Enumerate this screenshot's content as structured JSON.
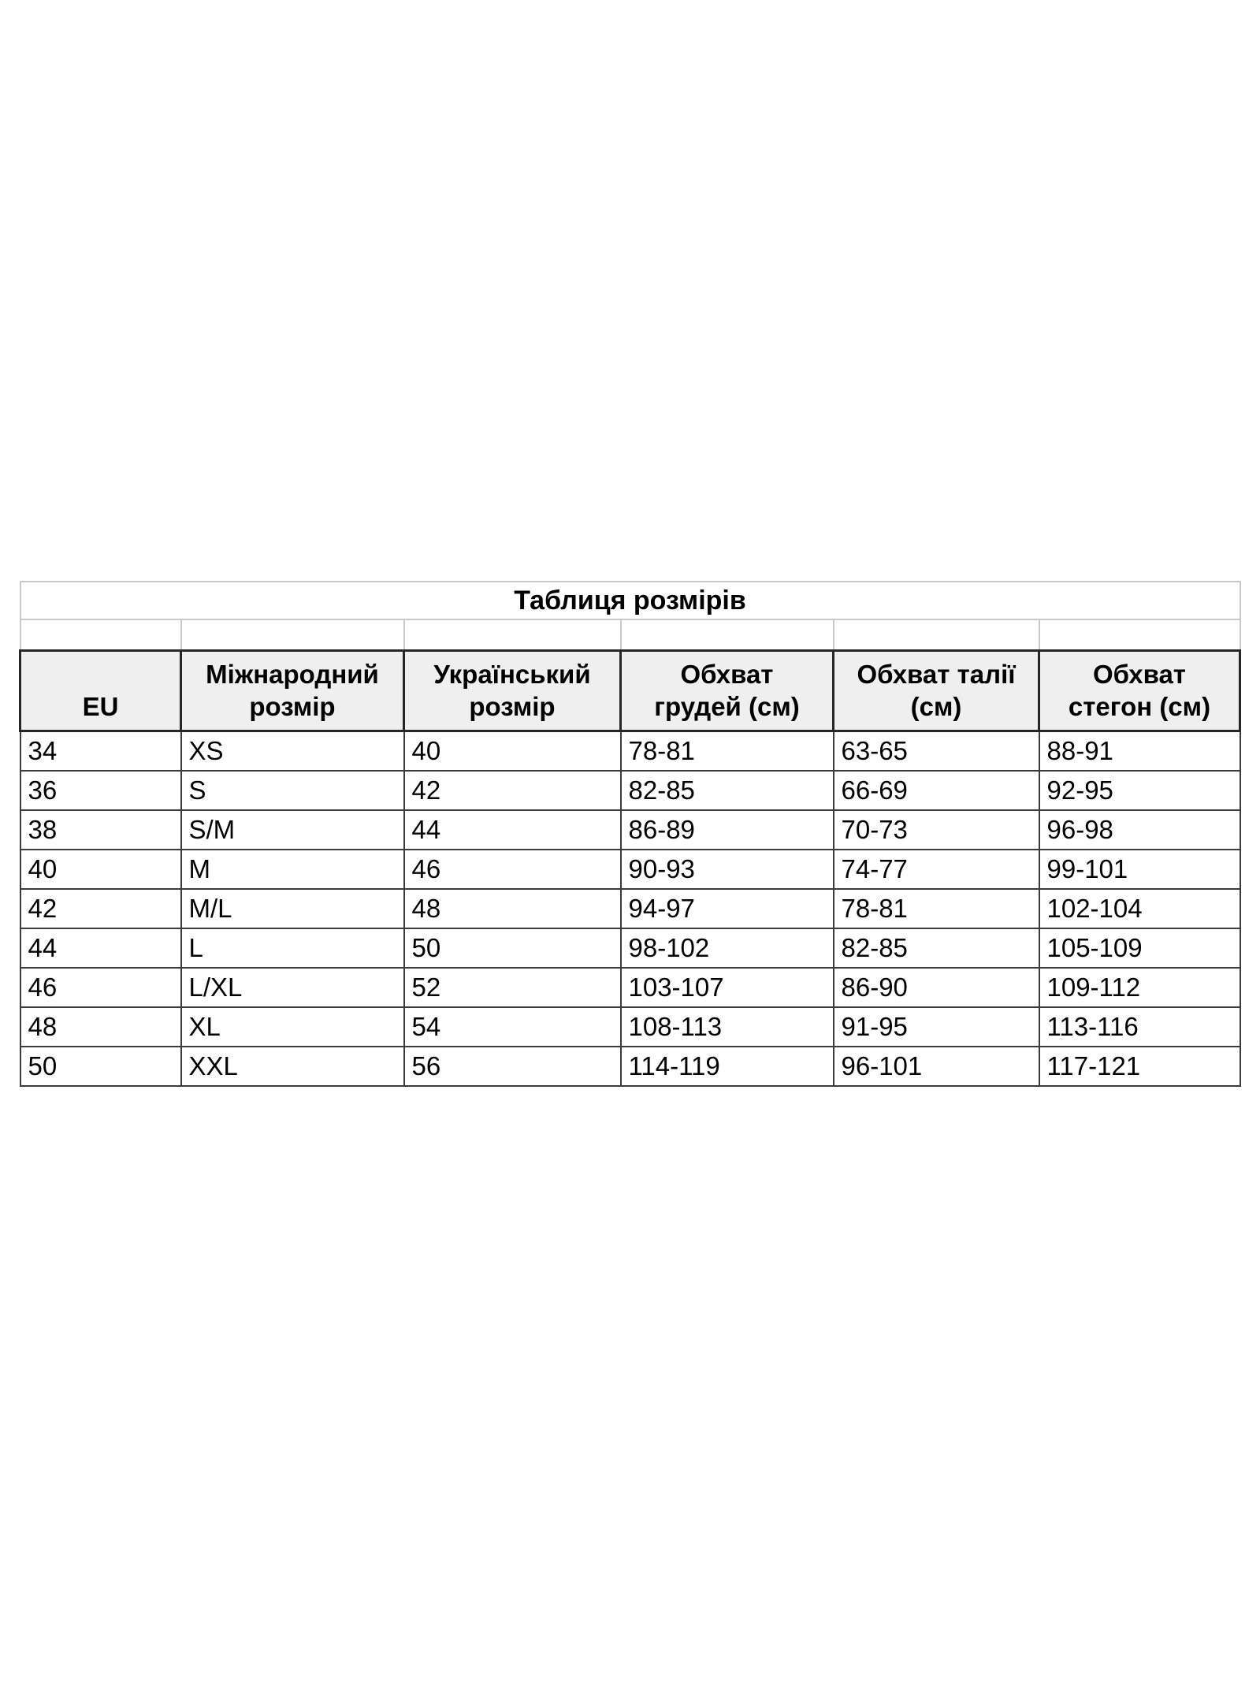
{
  "table": {
    "title": "Таблиця розмірів",
    "columns": [
      {
        "key": "eu",
        "label": "EU",
        "lines": [
          "EU",
          ""
        ]
      },
      {
        "key": "international-size",
        "label": "Міжнародний розмір",
        "lines": [
          "Міжнародний",
          "розмір"
        ]
      },
      {
        "key": "ukrainian-size",
        "label": "Український розмір",
        "lines": [
          "Український",
          "розмір"
        ]
      },
      {
        "key": "chest-cm",
        "label": "Обхват грудей (см)",
        "lines": [
          "Обхват",
          "грудей (см)"
        ]
      },
      {
        "key": "waist-cm",
        "label": "Обхват талії (см)",
        "lines": [
          "Обхват талії",
          "(см)"
        ]
      },
      {
        "key": "hips-cm",
        "label": "Обхват стегон (см)",
        "lines": [
          "Обхват",
          "стегон (см)"
        ]
      }
    ],
    "rows": [
      [
        "34",
        "XS",
        "40",
        "78-81",
        "63-65",
        "88-91"
      ],
      [
        "36",
        "S",
        "42",
        "82-85",
        "66-69",
        "92-95"
      ],
      [
        "38",
        "S/M",
        "44",
        "86-89",
        "70-73",
        "96-98"
      ],
      [
        "40",
        "M",
        "46",
        "90-93",
        "74-77",
        "99-101"
      ],
      [
        "42",
        "M/L",
        "48",
        "94-97",
        "78-81",
        "102-104"
      ],
      [
        "44",
        "L",
        "50",
        "98-102",
        "82-85",
        "105-109"
      ],
      [
        "46",
        "L/XL",
        "52",
        "103-107",
        "86-90",
        "109-112"
      ],
      [
        "48",
        "XL",
        "54",
        "108-113",
        "91-95",
        "113-116"
      ],
      [
        "50",
        "XXL",
        "56",
        "114-119",
        "96-101",
        "117-121"
      ]
    ],
    "colors": {
      "page_bg": "#ffffff",
      "header_bg": "#efefef",
      "light_border": "#c9c9c9",
      "dark_border": "#3b3b3b",
      "heavy_border": "#262626",
      "text": "#000000"
    }
  }
}
